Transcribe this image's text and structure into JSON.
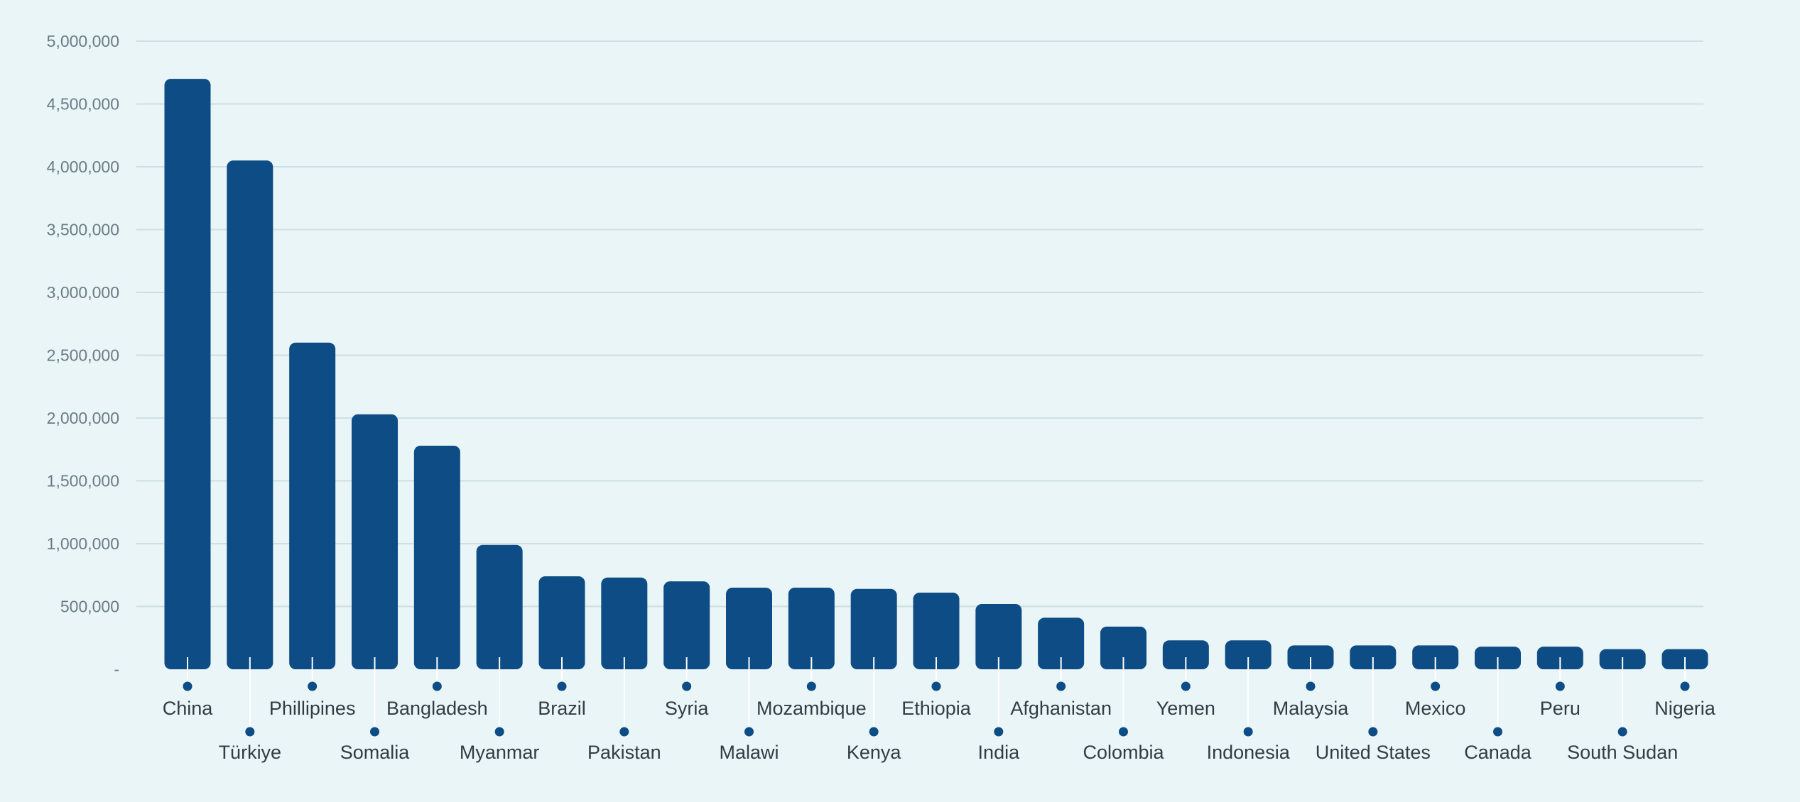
{
  "chart_data": {
    "type": "bar",
    "title": "",
    "xlabel": "",
    "ylabel": "",
    "ylim": [
      0,
      5000000
    ],
    "y_ticks": [
      "-",
      "500,000",
      "1,000,000",
      "1,500,000",
      "2,000,000",
      "2,500,000",
      "3,000,000",
      "3,500,000",
      "4,000,000",
      "4,500,000",
      "5,000,000"
    ],
    "grid": true,
    "bar_color": "#0d4c85",
    "background_color": "#e9f5f6",
    "categories": [
      "China",
      "Türkiye",
      "Phillipines",
      "Somalia",
      "Bangladesh",
      "Myanmar",
      "Brazil",
      "Pakistan",
      "Syria",
      "Malawi",
      "Mozambique",
      "Kenya",
      "Ethiopia",
      "India",
      "Afghanistan",
      "Colombia",
      "Yemen",
      "Indonesia",
      "Malaysia",
      "United States",
      "Mexico",
      "Canada",
      "Peru",
      "South Sudan",
      "Nigeria"
    ],
    "values": [
      4700000,
      4050000,
      2600000,
      2030000,
      1780000,
      990000,
      740000,
      730000,
      700000,
      650000,
      650000,
      640000,
      610000,
      520000,
      410000,
      340000,
      230000,
      230000,
      190000,
      190000,
      190000,
      180000,
      180000,
      160000,
      160000
    ]
  }
}
